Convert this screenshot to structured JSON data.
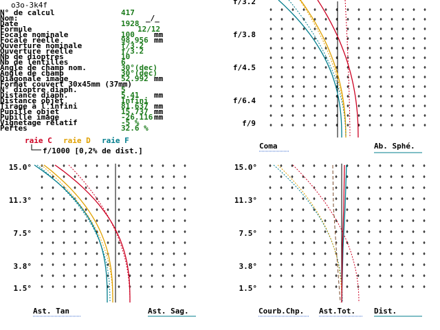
{
  "title": "o3o-3k4f",
  "params": [
    {
      "label": "N° de calcul",
      "value": "417",
      "unit": ""
    },
    {
      "label": "Nom:",
      "value": "",
      "unit": ""
    },
    {
      "label": "Date",
      "value": "1928",
      "unit": ""
    },
    {
      "label": "Formule",
      "value": "12/12",
      "unit": ""
    },
    {
      "label": "Focale nominale",
      "value": "100",
      "unit": "mm"
    },
    {
      "label": "Focale réelle",
      "value": "98.956",
      "unit": "mm"
    },
    {
      "label": "Ouverture nominale",
      "value": "f/3.2",
      "unit": ""
    },
    {
      "label": "Ouverture réelle",
      "value": "f/3.2",
      "unit": ""
    },
    {
      "label": "Nb de dioptres",
      "value": "10",
      "unit": ""
    },
    {
      "label": "Nb de lentilles",
      "value": "6",
      "unit": ""
    },
    {
      "label": "Angle de champ nom.",
      "value": "30°(dec)",
      "unit": ""
    },
    {
      "label": "Angle de champ",
      "value": "30°(dec)",
      "unit": ""
    },
    {
      "label": "Diagonale image",
      "value": "52.992",
      "unit": "mm"
    },
    {
      "label": "Format couvert 30x45mm (37mm)",
      "value": "",
      "unit": ""
    },
    {
      "label": "N° dioptre diaph.",
      "value": "5",
      "unit": ""
    },
    {
      "label": "Distance diaph.",
      "value": "5.41",
      "unit": "mm"
    },
    {
      "label": "Distance objet",
      "value": "Infini",
      "unit": ""
    },
    {
      "label": "Tirage à l'infini",
      "value": "81.637",
      "unit": "mm"
    },
    {
      "label": "Pupille objet",
      "value": "15.737",
      "unit": "mm"
    },
    {
      "label": "Pupille image",
      "value": "-26.116",
      "unit": "mm"
    },
    {
      "label": "Vignetage relatif",
      "value": "-5 %",
      "unit": ""
    },
    {
      "label": "Pertes",
      "value": "32.6 %",
      "unit": ""
    }
  ],
  "legend": {
    "c": "raie C",
    "d": "raie D",
    "f": "raie F",
    "scale": "f/1000 [0,2% de dist.]"
  },
  "colors": {
    "c": "#cc0022",
    "d": "#e0a000",
    "f": "#007c8c",
    "value": "#1a7a1a",
    "underline": "#3366cc"
  },
  "panel_top_right": {
    "yticks": [
      "f/3.2",
      "f/3.8",
      "f/4.5",
      "f/6.4",
      "f/9"
    ],
    "bottom_left": "Coma",
    "bottom_right": "Ab. Sphé."
  },
  "panel_bottom_left": {
    "yticks": [
      "15.0°",
      "11.3°",
      "7.5°",
      "3.8°",
      "1.5°"
    ],
    "bottom_left": "Ast. Tan",
    "bottom_right": "Ast. Sag."
  },
  "panel_bottom_right": {
    "yticks": [
      "15.0°",
      "11.3°",
      "7.5°",
      "3.8°",
      "1.5°"
    ],
    "labels": [
      "Courb.Chp.",
      "Ast.Tot.",
      "Dist."
    ]
  }
}
